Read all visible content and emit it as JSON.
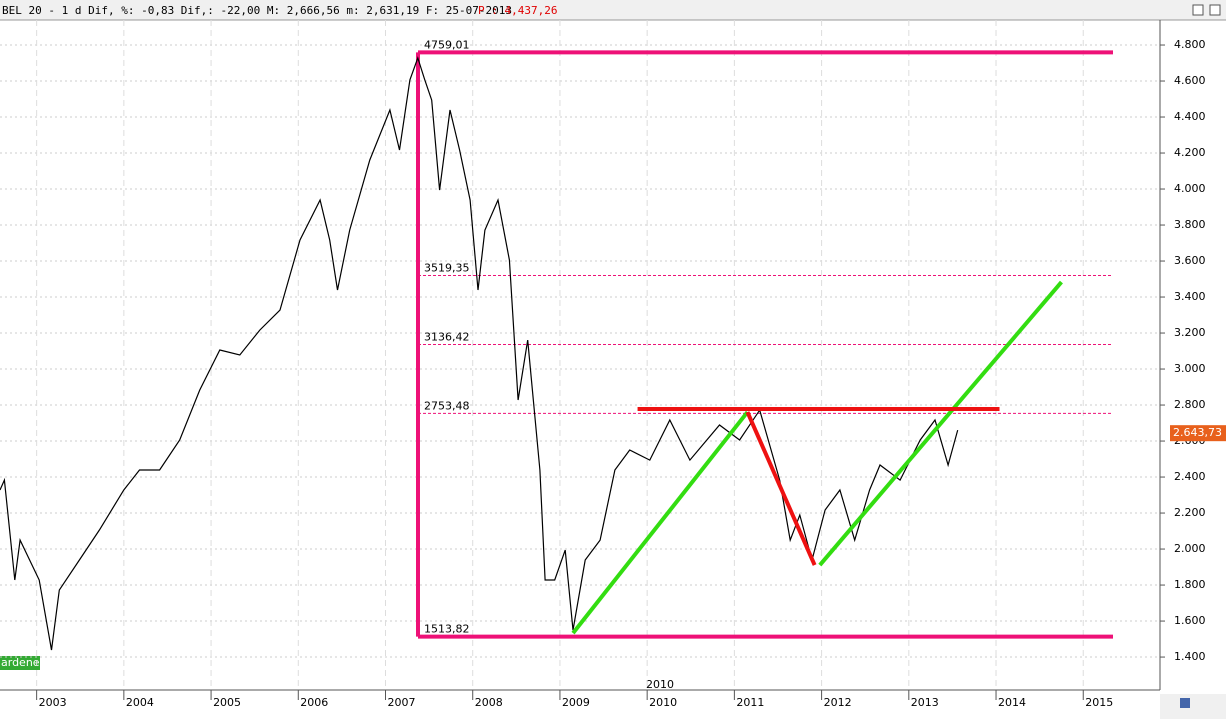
{
  "chart_data": {
    "type": "line",
    "title": "BEL 20 -  1 d Dif, %: -0,83 Dif,: -22,00 M: 2,666,56 m: 2,631,19 F: 25-07-2013",
    "price_annotation": "P : 4,437,26",
    "annotations": [
      "ardenes",
      "2010"
    ],
    "xlim": [
      2002.58,
      2015.88
    ],
    "xticks": [
      2003,
      2004,
      2005,
      2006,
      2007,
      2008,
      2009,
      2010,
      2011,
      2012,
      2013,
      2014,
      2015
    ],
    "ylim": [
      1217,
      4939
    ],
    "yticks": [
      {
        "value": 1400,
        "label": "1.400"
      },
      {
        "value": 1600,
        "label": "1.600"
      },
      {
        "value": 1800,
        "label": "1.800"
      },
      {
        "value": 2000,
        "label": "2.000"
      },
      {
        "value": 2200,
        "label": "2.200"
      },
      {
        "value": 2400,
        "label": "2.400"
      },
      {
        "value": 2600,
        "label": "2.600"
      },
      {
        "value": 2800,
        "label": "2.800"
      },
      {
        "value": 3000,
        "label": "3.000"
      },
      {
        "value": 3200,
        "label": "3.200"
      },
      {
        "value": 3400,
        "label": "3.400"
      },
      {
        "value": 3600,
        "label": "3.600"
      },
      {
        "value": 3800,
        "label": "3.800"
      },
      {
        "value": 4000,
        "label": "4.000"
      },
      {
        "value": 4200,
        "label": "4.200"
      },
      {
        "value": 4400,
        "label": "4.400"
      },
      {
        "value": 4600,
        "label": "4.600"
      },
      {
        "value": 4800,
        "label": "4.800"
      }
    ],
    "grid": true,
    "series": [
      {
        "name": "BEL 20",
        "color": "#000000",
        "x": [
          2002.58,
          2002.63,
          2002.75,
          2002.81,
          2003.03,
          2003.17,
          2003.26,
          2003.49,
          2003.72,
          2004.0,
          2004.18,
          2004.41,
          2004.64,
          2004.87,
          2005.1,
          2005.33,
          2005.56,
          2005.79,
          2006.02,
          2006.25,
          2006.36,
          2006.45,
          2006.59,
          2006.82,
          2007.05,
          2007.16,
          2007.28,
          2007.37,
          2007.45,
          2007.53,
          2007.62,
          2007.74,
          2007.85,
          2007.97,
          2008.06,
          2008.14,
          2008.29,
          2008.42,
          2008.52,
          2008.63,
          2008.77,
          2008.83,
          2008.94,
          2009.06,
          2009.15,
          2009.29,
          2009.46,
          2009.63,
          2009.8,
          2010.03,
          2010.26,
          2010.49,
          2010.83,
          2011.06,
          2011.29,
          2011.52,
          2011.64,
          2011.75,
          2011.89,
          2012.04,
          2012.21,
          2012.38,
          2012.55,
          2012.67,
          2012.9,
          2013.13,
          2013.3,
          2013.45,
          2013.56
        ],
        "values": [
          2328,
          2383,
          1828,
          2050,
          1828,
          1439,
          1772,
          1939,
          2106,
          2328,
          2439,
          2439,
          2606,
          2883,
          3106,
          3078,
          3217,
          3328,
          3717,
          3939,
          3717,
          3439,
          3772,
          4161,
          4439,
          4217,
          4606,
          4728,
          4606,
          4494,
          3994,
          4439,
          4217,
          3939,
          3439,
          3772,
          3939,
          3606,
          2828,
          3161,
          2439,
          1828,
          1828,
          1994,
          1550,
          1939,
          2050,
          2439,
          2550,
          2494,
          2717,
          2494,
          2689,
          2606,
          2772,
          2383,
          2050,
          2189,
          1939,
          2217,
          2328,
          2050,
          2328,
          2467,
          2383,
          2606,
          2717,
          2467,
          2661
        ]
      }
    ],
    "levels": {
      "values": [
        4759.01,
        3519.35,
        3136.42,
        2753.48,
        1513.82
      ],
      "value_labels": [
        "4759,01",
        "3519,35",
        "3136,42",
        "2753,48",
        "1513,82"
      ]
    },
    "trendlines": [
      {
        "color": "#33dd11",
        "x": [
          2009.15,
          2011.15
        ],
        "values": [
          1533,
          2761
        ]
      },
      {
        "color": "#ee1111",
        "x": [
          2011.15,
          2011.92
        ],
        "values": [
          2761,
          1911
        ]
      },
      {
        "color": "#33dd11",
        "x": [
          2011.98,
          2014.75
        ],
        "values": [
          1911,
          3483
        ]
      },
      {
        "color": "#ee1111",
        "x": [
          2009.89,
          2014.04
        ],
        "values": [
          2778,
          2778
        ]
      }
    ],
    "last_value": 2643.73,
    "last_value_label": "2.643,73"
  }
}
